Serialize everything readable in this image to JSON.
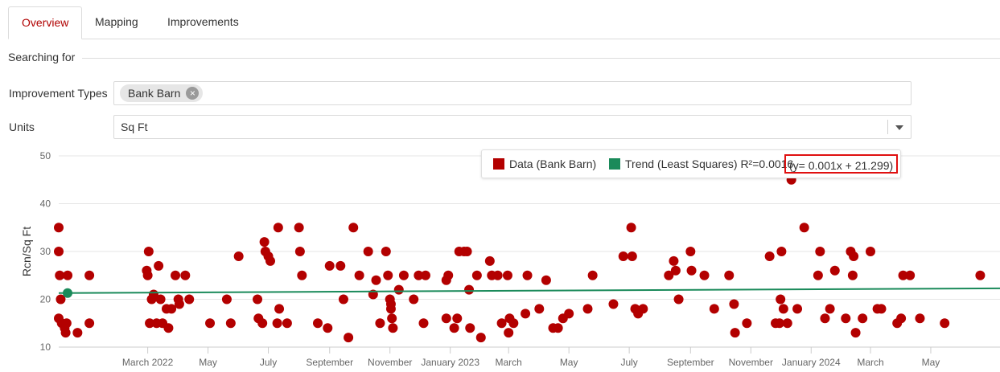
{
  "tabs": [
    {
      "label": "Overview",
      "active": true
    },
    {
      "label": "Mapping",
      "active": false
    },
    {
      "label": "Improvements",
      "active": false
    }
  ],
  "search": {
    "legend": "Searching for",
    "improvement_types_label": "Improvement Types",
    "improvement_types_chip": "Bank Barn",
    "units_label": "Units",
    "units_value": "Sq Ft"
  },
  "legend": {
    "data_label": "Data (Bank Barn)",
    "data_color": "#b30000",
    "trend_label": "Trend (Least Squares) R²=0.0016",
    "trend_color": "#1a8a5a",
    "equation": "(y= 0.001x + 21.299)"
  },
  "chart_data": {
    "type": "scatter",
    "ylabel": "Rcn/Sq Ft",
    "ylim": [
      10,
      50
    ],
    "yticks": [
      10,
      20,
      30,
      40,
      50
    ],
    "xlim": [
      "2021-12-01",
      "2024-07-10"
    ],
    "xticks": [
      {
        "label": "March 2022",
        "date": "2022-03-01"
      },
      {
        "label": "May",
        "date": "2022-05-01"
      },
      {
        "label": "July",
        "date": "2022-07-01"
      },
      {
        "label": "September",
        "date": "2022-09-01"
      },
      {
        "label": "November",
        "date": "2022-11-01"
      },
      {
        "label": "January 2023",
        "date": "2023-01-01"
      },
      {
        "label": "March",
        "date": "2023-03-01"
      },
      {
        "label": "May",
        "date": "2023-05-01"
      },
      {
        "label": "July",
        "date": "2023-07-01"
      },
      {
        "label": "September",
        "date": "2023-09-01"
      },
      {
        "label": "November",
        "date": "2023-11-01"
      },
      {
        "label": "January 2024",
        "date": "2024-01-01"
      },
      {
        "label": "March",
        "date": "2024-03-01"
      },
      {
        "label": "May",
        "date": "2024-05-01"
      }
    ],
    "grid": true,
    "trend": {
      "start": [
        "2021-12-01",
        21.3
      ],
      "end": [
        "2024-07-10",
        22.3
      ]
    },
    "trend_start_marker": [
      "2021-12-01",
      21.3
    ],
    "points": [
      [
        "2021-12-01",
        35
      ],
      [
        "2021-12-01",
        30
      ],
      [
        "2021-12-01",
        16
      ],
      [
        "2021-12-02",
        25
      ],
      [
        "2021-12-03",
        20
      ],
      [
        "2021-12-04",
        15
      ],
      [
        "2021-12-07",
        14
      ],
      [
        "2021-12-08",
        13
      ],
      [
        "2021-12-09",
        15
      ],
      [
        "2021-12-10",
        25
      ],
      [
        "2021-12-20",
        13
      ],
      [
        "2022-01-01",
        25
      ],
      [
        "2022-01-01",
        15
      ],
      [
        "2022-02-28",
        26
      ],
      [
        "2022-03-01",
        25
      ],
      [
        "2022-03-02",
        30
      ],
      [
        "2022-03-03",
        15
      ],
      [
        "2022-03-05",
        20
      ],
      [
        "2022-03-07",
        21
      ],
      [
        "2022-03-10",
        15
      ],
      [
        "2022-03-12",
        27
      ],
      [
        "2022-03-14",
        20
      ],
      [
        "2022-03-16",
        15
      ],
      [
        "2022-03-20",
        18
      ],
      [
        "2022-03-22",
        14
      ],
      [
        "2022-03-25",
        18
      ],
      [
        "2022-03-29",
        25
      ],
      [
        "2022-04-01",
        20
      ],
      [
        "2022-04-02",
        19
      ],
      [
        "2022-04-08",
        25
      ],
      [
        "2022-04-12",
        20
      ],
      [
        "2022-05-03",
        15
      ],
      [
        "2022-05-20",
        20
      ],
      [
        "2022-05-24",
        15
      ],
      [
        "2022-06-01",
        29
      ],
      [
        "2022-06-20",
        20
      ],
      [
        "2022-06-21",
        16
      ],
      [
        "2022-06-25",
        15
      ],
      [
        "2022-06-27",
        32
      ],
      [
        "2022-06-28",
        30
      ],
      [
        "2022-07-01",
        29
      ],
      [
        "2022-07-03",
        28
      ],
      [
        "2022-07-10",
        15
      ],
      [
        "2022-07-11",
        35
      ],
      [
        "2022-07-12",
        18
      ],
      [
        "2022-07-20",
        15
      ],
      [
        "2022-08-01",
        35
      ],
      [
        "2022-08-02",
        30
      ],
      [
        "2022-08-04",
        25
      ],
      [
        "2022-08-20",
        15
      ],
      [
        "2022-08-30",
        14
      ],
      [
        "2022-09-01",
        27
      ],
      [
        "2022-09-12",
        27
      ],
      [
        "2022-09-15",
        20
      ],
      [
        "2022-09-20",
        12
      ],
      [
        "2022-09-25",
        35
      ],
      [
        "2022-10-01",
        25
      ],
      [
        "2022-10-10",
        30
      ],
      [
        "2022-10-15",
        21
      ],
      [
        "2022-10-18",
        24
      ],
      [
        "2022-10-22",
        15
      ],
      [
        "2022-10-28",
        30
      ],
      [
        "2022-10-30",
        25
      ],
      [
        "2022-11-01",
        20
      ],
      [
        "2022-11-02",
        19
      ],
      [
        "2022-11-02",
        18
      ],
      [
        "2022-11-03",
        16
      ],
      [
        "2022-11-04",
        14
      ],
      [
        "2022-11-10",
        22
      ],
      [
        "2022-11-15",
        25
      ],
      [
        "2022-11-25",
        20
      ],
      [
        "2022-11-30",
        25
      ],
      [
        "2022-12-05",
        15
      ],
      [
        "2022-12-07",
        25
      ],
      [
        "2022-12-28",
        16
      ],
      [
        "2022-12-28",
        24
      ],
      [
        "2022-12-30",
        25
      ],
      [
        "2023-01-05",
        14
      ],
      [
        "2023-01-08",
        16
      ],
      [
        "2023-01-10",
        30
      ],
      [
        "2023-01-15",
        30
      ],
      [
        "2023-01-18",
        30
      ],
      [
        "2023-01-20",
        22
      ],
      [
        "2023-01-21",
        14
      ],
      [
        "2023-01-28",
        25
      ],
      [
        "2023-02-01",
        12
      ],
      [
        "2023-02-10",
        28
      ],
      [
        "2023-02-12",
        25
      ],
      [
        "2023-02-18",
        25
      ],
      [
        "2023-02-22",
        15
      ],
      [
        "2023-02-28",
        25
      ],
      [
        "2023-03-01",
        13
      ],
      [
        "2023-03-02",
        16
      ],
      [
        "2023-03-06",
        15
      ],
      [
        "2023-03-18",
        17
      ],
      [
        "2023-03-20",
        25
      ],
      [
        "2023-04-01",
        18
      ],
      [
        "2023-04-08",
        24
      ],
      [
        "2023-04-15",
        14
      ],
      [
        "2023-04-20",
        14
      ],
      [
        "2023-04-25",
        16
      ],
      [
        "2023-05-01",
        17
      ],
      [
        "2023-05-20",
        18
      ],
      [
        "2023-05-25",
        25
      ],
      [
        "2023-06-15",
        19
      ],
      [
        "2023-06-25",
        29
      ],
      [
        "2023-07-03",
        35
      ],
      [
        "2023-07-04",
        29
      ],
      [
        "2023-07-07",
        18
      ],
      [
        "2023-07-10",
        17
      ],
      [
        "2023-07-15",
        18
      ],
      [
        "2023-08-10",
        25
      ],
      [
        "2023-08-15",
        28
      ],
      [
        "2023-08-17",
        26
      ],
      [
        "2023-08-20",
        20
      ],
      [
        "2023-09-01",
        30
      ],
      [
        "2023-09-02",
        26
      ],
      [
        "2023-09-15",
        25
      ],
      [
        "2023-09-25",
        18
      ],
      [
        "2023-10-10",
        25
      ],
      [
        "2023-10-15",
        19
      ],
      [
        "2023-10-16",
        13
      ],
      [
        "2023-10-28",
        15
      ],
      [
        "2023-11-20",
        29
      ],
      [
        "2023-11-26",
        15
      ],
      [
        "2023-11-30",
        15
      ],
      [
        "2023-12-01",
        20
      ],
      [
        "2023-12-02",
        30
      ],
      [
        "2023-12-04",
        18
      ],
      [
        "2023-12-08",
        15
      ],
      [
        "2023-12-12",
        45
      ],
      [
        "2023-12-18",
        18
      ],
      [
        "2023-12-25",
        35
      ],
      [
        "2024-01-08",
        25
      ],
      [
        "2024-01-10",
        30
      ],
      [
        "2024-01-15",
        16
      ],
      [
        "2024-01-20",
        18
      ],
      [
        "2024-01-25",
        26
      ],
      [
        "2024-02-05",
        16
      ],
      [
        "2024-02-10",
        30
      ],
      [
        "2024-02-12",
        25
      ],
      [
        "2024-02-13",
        29
      ],
      [
        "2024-02-15",
        13
      ],
      [
        "2024-02-22",
        16
      ],
      [
        "2024-03-01",
        30
      ],
      [
        "2024-03-08",
        18
      ],
      [
        "2024-03-12",
        18
      ],
      [
        "2024-03-28",
        15
      ],
      [
        "2024-04-01",
        16
      ],
      [
        "2024-04-03",
        25
      ],
      [
        "2024-04-10",
        25
      ],
      [
        "2024-04-20",
        16
      ],
      [
        "2024-05-15",
        15
      ],
      [
        "2024-06-20",
        25
      ]
    ]
  }
}
